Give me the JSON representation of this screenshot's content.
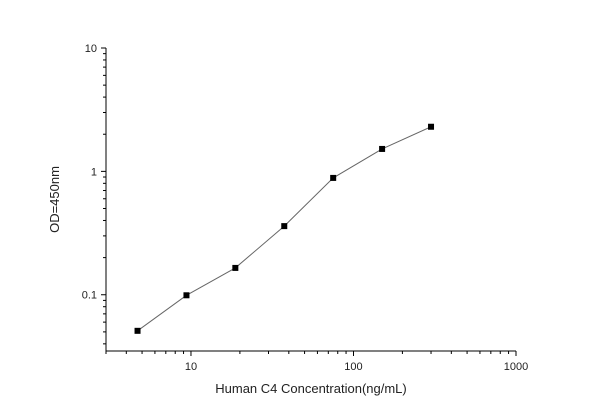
{
  "chart_data": {
    "type": "scatter",
    "xscale": "log",
    "yscale": "log",
    "xlabel": "Human C4 Concentration(ng/mL)",
    "ylabel": "OD=450nm",
    "xlim": [
      3,
      1000
    ],
    "ylim": [
      0.035,
      10
    ],
    "xticks": [
      {
        "value": 10,
        "label": "10"
      },
      {
        "value": 100,
        "label": "100"
      },
      {
        "value": 1000,
        "label": "1000"
      }
    ],
    "yticks": [
      {
        "value": 0.1,
        "label": "0.1"
      },
      {
        "value": 1,
        "label": "1"
      },
      {
        "value": 10,
        "label": "10"
      }
    ],
    "grid": false,
    "series": [
      {
        "x": [
          4.69,
          9.38,
          18.75,
          37.5,
          75,
          150,
          300
        ],
        "y": [
          0.051,
          0.099,
          0.165,
          0.36,
          0.885,
          1.52,
          2.3
        ],
        "marker": "square",
        "line": true,
        "marker_color": "#000000",
        "line_color": "#666666"
      }
    ]
  }
}
